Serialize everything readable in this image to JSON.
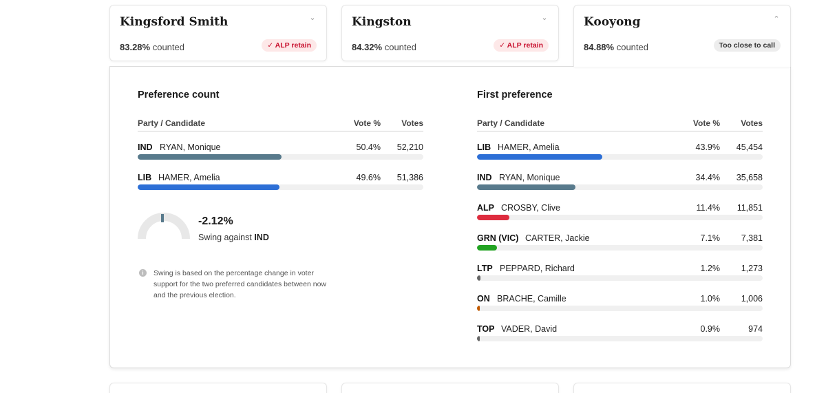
{
  "seats": [
    {
      "name": "Kingsford Smith",
      "counted_pct": "83.28%",
      "counted_label": "counted",
      "status": "✓ ALP retain",
      "status_type": "retain",
      "chevron": "chevron-down-icon"
    },
    {
      "name": "Kingston",
      "counted_pct": "84.32%",
      "counted_label": "counted",
      "status": "✓ ALP retain",
      "status_type": "retain",
      "chevron": "chevron-down-icon"
    },
    {
      "name": "Kooyong",
      "counted_pct": "84.88%",
      "counted_label": "counted",
      "status": "Too close to call",
      "status_type": "close",
      "chevron": "chevron-up-icon",
      "expanded": true
    }
  ],
  "detail": {
    "preference": {
      "title": "Preference count",
      "headers": {
        "party": "Party / Candidate",
        "pct": "Vote %",
        "votes": "Votes"
      },
      "rows": [
        {
          "party": "IND",
          "candidate": "RYAN, Monique",
          "pct": "50.4%",
          "votes": "52,210",
          "share": 50.4,
          "color": "#587a8c"
        },
        {
          "party": "LIB",
          "candidate": "HAMER, Amelia",
          "pct": "49.6%",
          "votes": "51,386",
          "share": 49.6,
          "color": "#2d6fd6"
        }
      ]
    },
    "swing": {
      "value": "-2.12%",
      "label_prefix": "Swing against",
      "party": "IND",
      "gauge_color": "#587a8c"
    },
    "note": "Swing is based on the percentage change in voter support for the two preferred candidates between now and the previous election.",
    "first": {
      "title": "First preference",
      "headers": {
        "party": "Party / Candidate",
        "pct": "Vote %",
        "votes": "Votes"
      },
      "rows": [
        {
          "party": "LIB",
          "candidate": "HAMER, Amelia",
          "pct": "43.9%",
          "votes": "45,454",
          "share": 43.9,
          "color": "#2d6fd6"
        },
        {
          "party": "IND",
          "candidate": "RYAN, Monique",
          "pct": "34.4%",
          "votes": "35,658",
          "share": 34.4,
          "color": "#587a8c"
        },
        {
          "party": "ALP",
          "candidate": "CROSBY, Clive",
          "pct": "11.4%",
          "votes": "11,851",
          "share": 11.4,
          "color": "#de2c3e"
        },
        {
          "party": "GRN (VIC)",
          "candidate": "CARTER, Jackie",
          "pct": "7.1%",
          "votes": "7,381",
          "share": 7.1,
          "color": "#22a322"
        },
        {
          "party": "LTP",
          "candidate": "PEPPARD, Richard",
          "pct": "1.2%",
          "votes": "1,273",
          "share": 1.2,
          "color": "#666666"
        },
        {
          "party": "ON",
          "candidate": "BRACHE, Camille",
          "pct": "1.0%",
          "votes": "1,006",
          "share": 1.0,
          "color": "#c25a00"
        },
        {
          "party": "TOP",
          "candidate": "VADER, David",
          "pct": "0.9%",
          "votes": "974",
          "share": 0.9,
          "color": "#666666"
        }
      ]
    }
  }
}
